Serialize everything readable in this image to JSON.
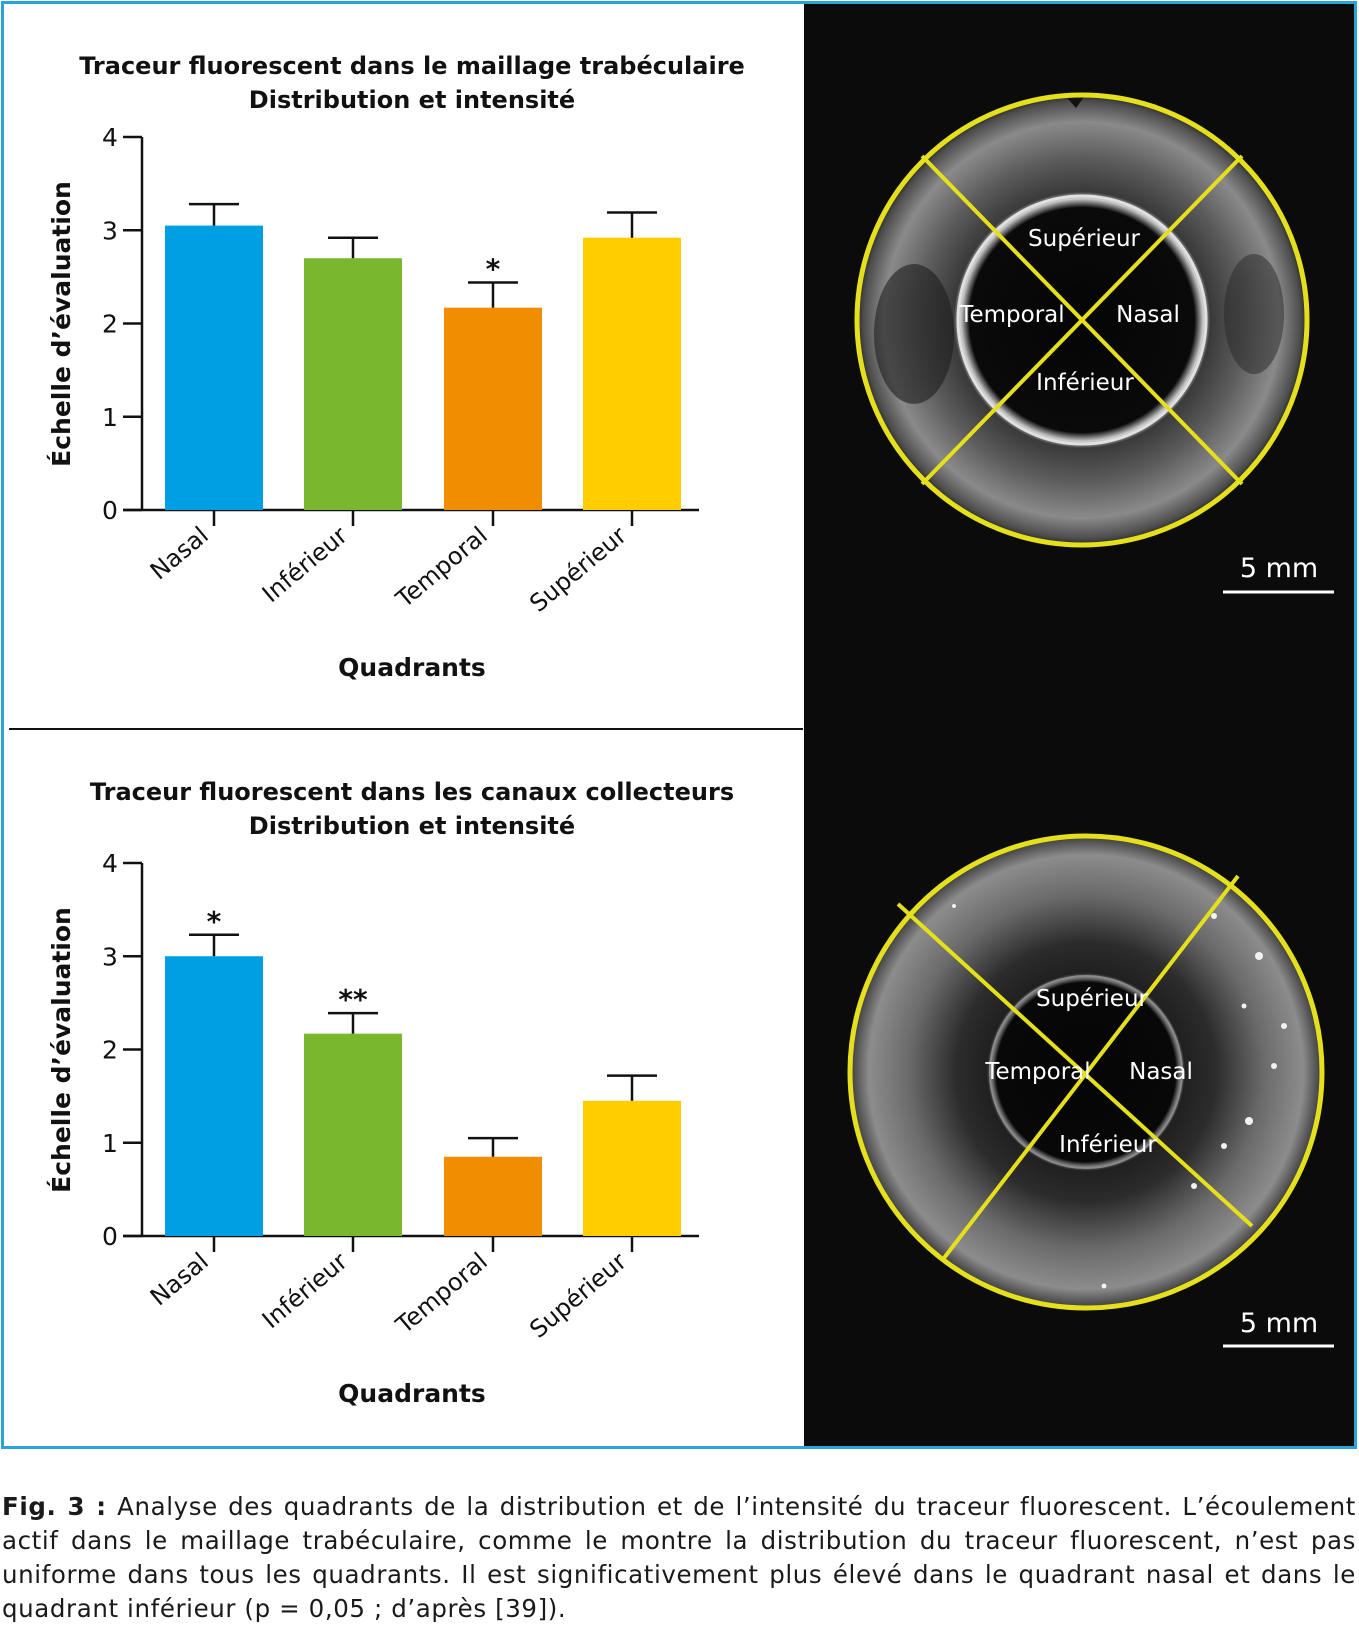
{
  "chart_data": [
    {
      "type": "bar",
      "title": "Traceur fluorescent dans le maillage trabéculaire",
      "subtitle": "Distribution et intensité",
      "xlabel": "Quadrants",
      "ylabel": "Échelle d’évaluation",
      "ylim": [
        0,
        4
      ],
      "yticks": [
        "0",
        "1",
        "2",
        "3",
        "4"
      ],
      "categories": [
        "Nasal",
        "Inférieur",
        "Temporal",
        "Supérieur"
      ],
      "values": [
        3.05,
        2.7,
        2.17,
        2.92
      ],
      "errors": [
        0.23,
        0.22,
        0.27,
        0.27
      ],
      "significance": [
        "",
        "",
        "*",
        ""
      ],
      "colors": [
        "#009fe3",
        "#78b72e",
        "#f08d00",
        "#ffcd00"
      ],
      "grid": false
    },
    {
      "type": "bar",
      "title": "Traceur fluorescent dans les canaux collecteurs",
      "subtitle": "Distribution et intensité",
      "xlabel": "Quadrants",
      "ylabel": "Échelle d’évaluation",
      "ylim": [
        0,
        4
      ],
      "yticks": [
        "0",
        "1",
        "2",
        "3",
        "4"
      ],
      "categories": [
        "Nasal",
        "Inférieur",
        "Temporal",
        "Supérieur"
      ],
      "values": [
        3.0,
        2.17,
        0.85,
        1.45
      ],
      "errors": [
        0.23,
        0.22,
        0.2,
        0.27
      ],
      "significance": [
        "*",
        "**",
        "",
        ""
      ],
      "colors": [
        "#009fe3",
        "#78b72e",
        "#f08d00",
        "#ffcd00"
      ],
      "grid": false
    }
  ],
  "images": [
    {
      "quadrant_labels": [
        "Supérieur",
        "Temporal",
        "Nasal",
        "Inférieur"
      ],
      "scale_bar": "5 mm",
      "overlay_color": "#e6e01c"
    },
    {
      "quadrant_labels": [
        "Supérieur",
        "Temporal",
        "Nasal",
        "Inférieur"
      ],
      "scale_bar": "5 mm",
      "overlay_color": "#e6e01c"
    }
  ],
  "caption": {
    "label": "Fig. 3 :",
    "text": "Analyse des quadrants de la distribution et de l’intensité du traceur fluorescent. L’écoulement actif dans le maillage trabéculaire, comme le montre la distribution du traceur fluorescent, n’est pas uniforme dans tous les quadrants. Il est significativement plus élevé dans le quadrant nasal et dans le quadrant inférieur (p = 0,05 ; d’après [39])."
  }
}
